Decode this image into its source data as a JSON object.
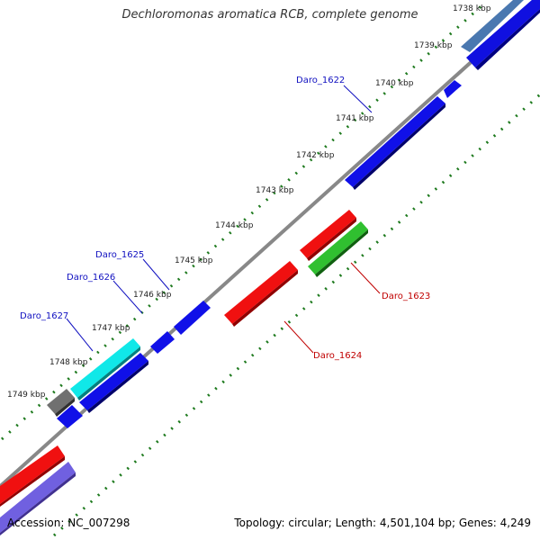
{
  "title": "Dechloromonas aromatica RCB, complete genome",
  "footer": {
    "accession": "Accession: NC_007298",
    "stats": "Topology: circular; Length: 4,501,104 bp; Genes: 4,249"
  },
  "ticks": [
    "1738 kbp",
    "1739 kbp",
    "1740 kbp",
    "1741 kbp",
    "1742 kbp",
    "1743 kbp",
    "1744 kbp",
    "1745 kbp",
    "1746 kbp",
    "1747 kbp",
    "1748 kbp",
    "1749 kbp"
  ],
  "gene_labels": {
    "daro_1622": "Daro_1622",
    "daro_1623": "Daro_1623",
    "daro_1624": "Daro_1624",
    "daro_1625": "Daro_1625",
    "daro_1626": "Daro_1626",
    "daro_1627": "Daro_1627"
  },
  "colors": {
    "forward_label": "#1010c0",
    "reverse_label": "#c00000",
    "blue": "#1010e8",
    "red": "#f01010",
    "green": "#30c030",
    "cyan": "#10e8e8",
    "gray": "#707070",
    "lavender": "#7060e0",
    "steel": "#4a7ab0",
    "backbone": "#888888",
    "tick_marks": "#208020"
  }
}
